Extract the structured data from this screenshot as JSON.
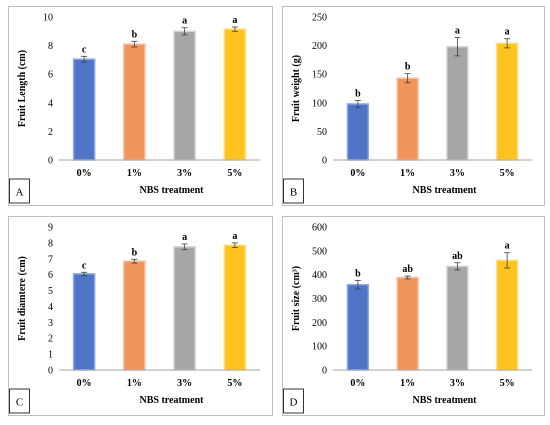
{
  "colors": {
    "bar_fills": [
      "#4f74c8",
      "#f1955c",
      "#a6a6a6",
      "#ffc31f"
    ],
    "bar_strokes": [
      "#8eaae0",
      "#f7c19f",
      "#d4d4d4",
      "#ffdd7a"
    ],
    "error_bar": "#404040",
    "axis": "#a6a6a6"
  },
  "chart_data": [
    {
      "panel": "A",
      "type": "bar",
      "categories": [
        "0%",
        "1%",
        "3%",
        "5%"
      ],
      "values": [
        7.05,
        8.1,
        9.0,
        9.15
      ],
      "errors": [
        0.2,
        0.2,
        0.25,
        0.15
      ],
      "significance": [
        "c",
        "b",
        "a",
        "a"
      ],
      "xlabel": "NBS treatment",
      "ylabel": "Fruit Length (cm)",
      "ylim": [
        0,
        10
      ],
      "yticks": [
        0,
        2,
        4,
        6,
        8,
        10
      ],
      "grid": false
    },
    {
      "panel": "B",
      "type": "bar",
      "categories": [
        "0%",
        "1%",
        "3%",
        "5%"
      ],
      "values": [
        98,
        143,
        198,
        204
      ],
      "errors": [
        6,
        8,
        16,
        8
      ],
      "significance": [
        "b",
        "b",
        "a",
        "a"
      ],
      "xlabel": "NBS treatment",
      "ylabel": "Fruit weight (g)",
      "ylim": [
        0,
        250
      ],
      "yticks": [
        0,
        50,
        100,
        150,
        200,
        250
      ],
      "grid": false
    },
    {
      "panel": "C",
      "type": "bar",
      "categories": [
        "0%",
        "1%",
        "3%",
        "5%"
      ],
      "values": [
        6.05,
        6.85,
        7.75,
        7.85
      ],
      "errors": [
        0.1,
        0.12,
        0.18,
        0.15
      ],
      "significance": [
        "c",
        "b",
        "a",
        "a"
      ],
      "xlabel": "NBS treatment",
      "ylabel": "Fruit diamtere (cm)",
      "ylim": [
        0,
        9
      ],
      "yticks": [
        0,
        1,
        2,
        3,
        4,
        5,
        6,
        7,
        8,
        9
      ],
      "grid": false
    },
    {
      "panel": "D",
      "type": "bar",
      "categories": [
        "0%",
        "1%",
        "3%",
        "5%"
      ],
      "values": [
        358,
        388,
        435,
        460
      ],
      "errors": [
        18,
        6,
        15,
        32
      ],
      "significance": [
        "b",
        "ab",
        "ab",
        "a"
      ],
      "xlabel": "NBS treatment",
      "ylabel": "Fruit size (cm³)",
      "ylim": [
        0,
        600
      ],
      "yticks": [
        0,
        100,
        200,
        300,
        400,
        500,
        600
      ],
      "grid": false
    }
  ]
}
